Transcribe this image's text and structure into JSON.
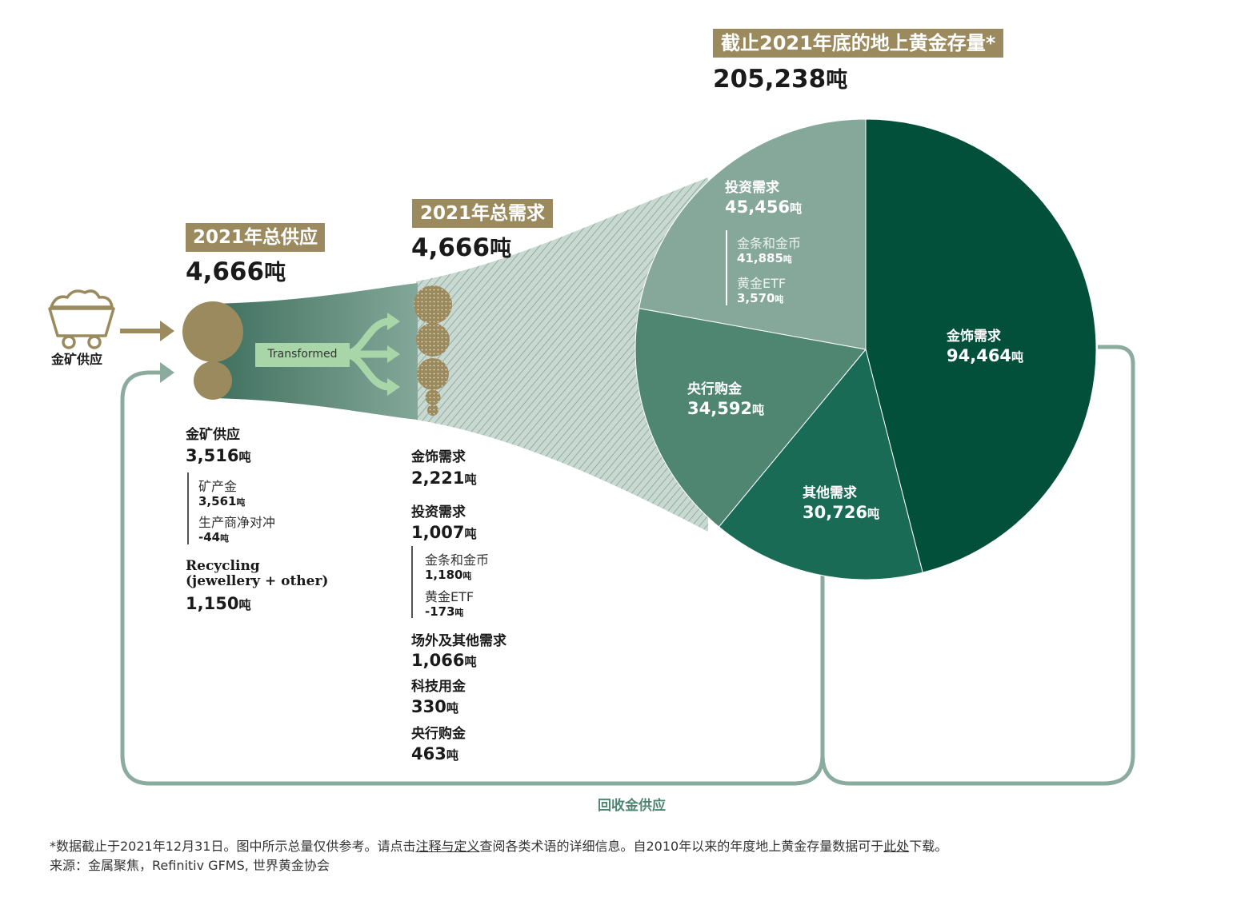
{
  "colors": {
    "gold": "#9b8a5e",
    "dark_green": "#025039",
    "mid_green": "#1a6b55",
    "sage_green": "#4f8672",
    "light_sage": "#85a89a",
    "loop_line": "#8aab9e",
    "arrow_light": "#a9d6a8"
  },
  "icons": {
    "mine_cart": "mine-cart-icon"
  },
  "stock": {
    "title": "截止2021年底的地上黄金存量*",
    "total_value": "205,238",
    "unit": "吨"
  },
  "supply": {
    "title": "2021年总供应",
    "total_value": "4,666",
    "unit": "吨",
    "mine_icon_label": "金矿供应",
    "mine_label": "金矿供应",
    "mine_value": "3,516",
    "mine_sub1_label": "矿产金",
    "mine_sub1_value": "3,561",
    "mine_sub2_label": "生产商净对冲",
    "mine_sub2_value": "-44",
    "recycling_label1": "Recycling",
    "recycling_label2": "(jewellery + other)",
    "recycling_value": "1,150"
  },
  "transformed_label": "Transformed",
  "demand": {
    "title": "2021年总需求",
    "total_value": "4,666",
    "unit": "吨",
    "jewellery_label": "金饰需求",
    "jewellery_value": "2,221",
    "investment_label": "投资需求",
    "investment_value": "1,007",
    "bars_label": "金条和金币",
    "bars_value": "1,180",
    "etf_label": "黄金ETF",
    "etf_value": "-173",
    "otc_label": "场外及其他需求",
    "otc_value": "1,066",
    "tech_label": "科技用金",
    "tech_value": "330",
    "cb_label": "央行购金",
    "cb_value": "463"
  },
  "chart_data": {
    "type": "pie",
    "unit": "吨",
    "slices": [
      {
        "name": "金饰需求",
        "value": 94464,
        "display": "94,464"
      },
      {
        "name": "其他需求",
        "value": 30726,
        "display": "30,726"
      },
      {
        "name": "央行购金",
        "value": 34592,
        "display": "34,592"
      },
      {
        "name": "投资需求",
        "value": 45456,
        "display": "45,456",
        "sub": [
          {
            "name": "金条和金币",
            "value": 41885,
            "display": "41,885"
          },
          {
            "name": "黄金ETF",
            "value": 3570,
            "display": "3,570"
          }
        ]
      }
    ]
  },
  "recycle_label": "回收金供应",
  "footnote": {
    "line1_part1": "*数据截止于2021年12月31日。图中所示总量仅供参考。请点击",
    "line1_link1": "注释与定义",
    "line1_part2": "查阅各类术语的详细信息。自2010年以来的年度地上黄金存量数据可于",
    "line1_link2": "此处",
    "line1_part3": "下载。",
    "source": "来源：金属聚焦，Refinitiv GFMS, 世界黄金协会"
  }
}
